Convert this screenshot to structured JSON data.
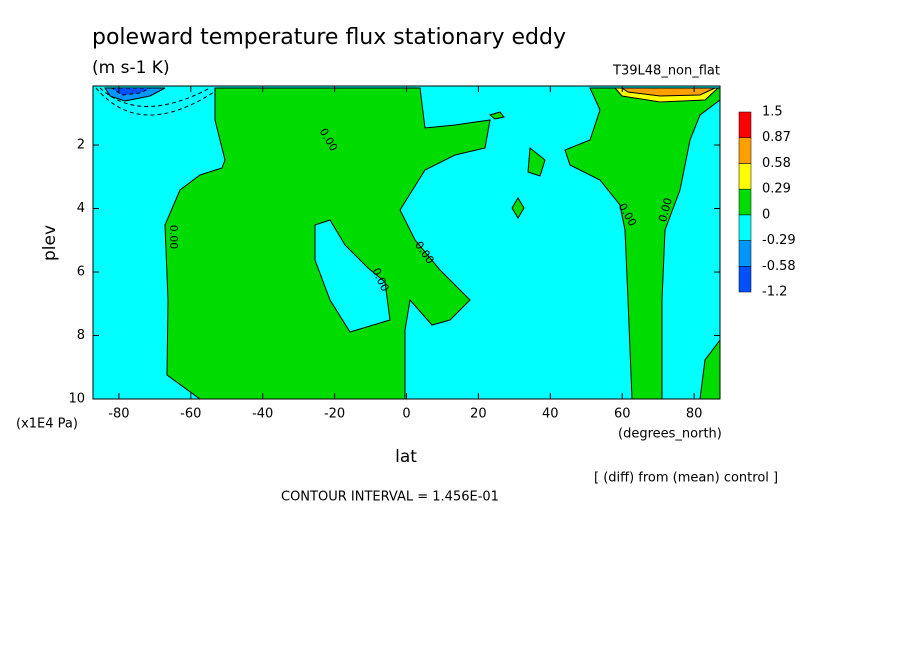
{
  "chart_data": {
    "type": "contour",
    "title": "poleward temperature flux stationary eddy",
    "subtitle": "(m s-1 K)",
    "annotation": "T39L48_non_flat",
    "x_label": "lat",
    "x_units": "(degrees_north)",
    "y_label": "plev",
    "y_units": "(x1E4 Pa)",
    "footnote": "[ (diff) from (mean) control ]",
    "contour_interval": "CONTOUR INTERVAL = 1.456E-01",
    "xlim": [
      -87.2,
      87.2
    ],
    "xticks": [
      -80,
      -60,
      -40,
      -20,
      0,
      20,
      40,
      60,
      80
    ],
    "ylim": [
      10,
      0.14
    ],
    "yticks": [
      2,
      4,
      6,
      8,
      10
    ],
    "levels": [
      -1.2,
      -0.58,
      -0.29,
      0,
      0.29,
      0.58,
      0.87,
      1.5
    ],
    "colors": [
      "#0050ff",
      "#0096ff",
      "#00ffff",
      "#00dc00",
      "#ffff00",
      "#ffa000",
      "#ff0000"
    ],
    "contour_labels": [
      "0.00",
      "0.00",
      "0.00",
      "0.00",
      "0.00",
      "0.00"
    ]
  }
}
